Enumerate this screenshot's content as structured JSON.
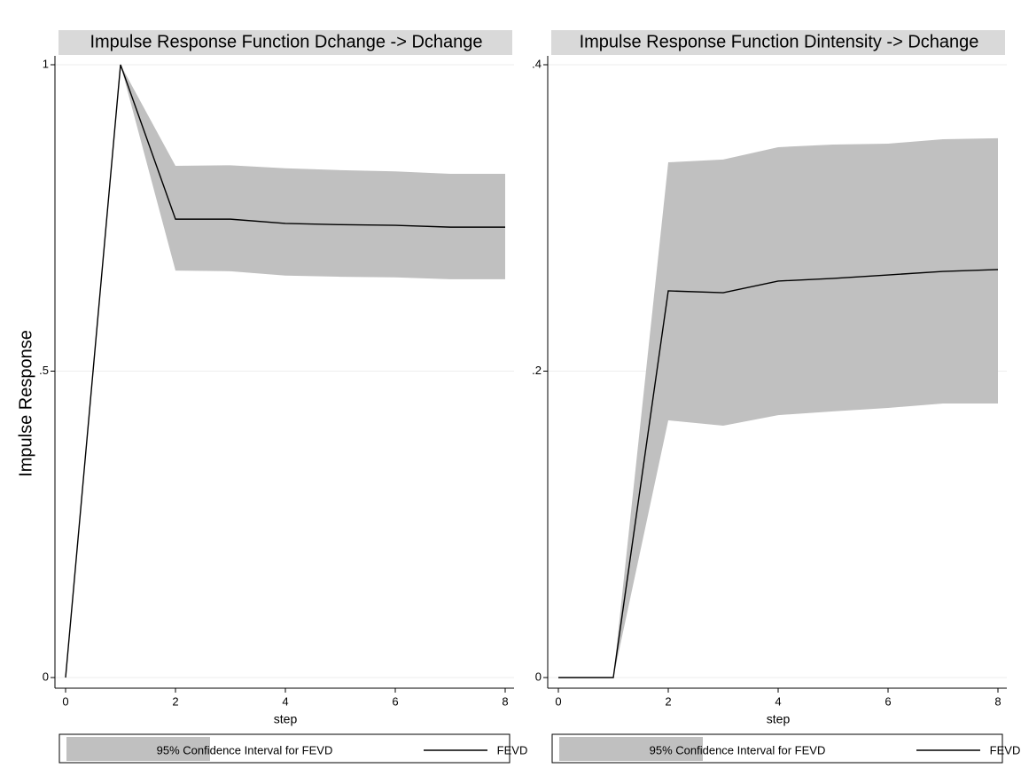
{
  "chart_data": [
    {
      "type": "line",
      "title": "Impulse Response Function  Dchange -> Dchange",
      "ylabel": "Impulse Response",
      "xlabel": "step",
      "x": [
        0,
        1,
        2,
        3,
        4,
        5,
        6,
        7,
        8
      ],
      "xlim": [
        0,
        8
      ],
      "xticks": [
        0,
        2,
        4,
        6,
        8
      ],
      "ylim": [
        0,
        1
      ],
      "yticks": [
        0,
        {
          "value": 0.5,
          "label": ".5"
        },
        1
      ],
      "grid": true,
      "band": {
        "name": "95% Confidence Interval for FEVD",
        "color": "#c0c0c0",
        "upper": [
          0,
          1,
          0.835,
          0.836,
          0.831,
          0.828,
          0.826,
          0.822,
          0.822
        ],
        "lower": [
          0,
          1,
          0.664,
          0.663,
          0.656,
          0.654,
          0.653,
          0.65,
          0.65
        ]
      },
      "series": [
        {
          "name": "FEVD",
          "color": "#000000",
          "values": [
            0,
            1,
            0.748,
            0.748,
            0.741,
            0.739,
            0.738,
            0.735,
            0.735
          ]
        }
      ]
    },
    {
      "type": "line",
      "title": "Impulse Response Function Dintensity -> Dchange",
      "xlabel": "step",
      "x": [
        0,
        1,
        2,
        3,
        4,
        5,
        6,
        7,
        8
      ],
      "xlim": [
        0,
        8
      ],
      "xticks": [
        0,
        2,
        4,
        6,
        8
      ],
      "ylim": [
        0,
        0.4
      ],
      "yticks": [
        0,
        {
          "value": 0.2,
          "label": ".2"
        },
        {
          "value": 0.4,
          "label": ".4"
        }
      ],
      "grid": true,
      "band": {
        "name": "95% Confidence Interval for FEVD",
        "color": "#c0c0c0",
        "upper": [
          0,
          0,
          0.3363,
          0.3381,
          0.3462,
          0.3479,
          0.3485,
          0.3514,
          0.352
        ],
        "lower": [
          0,
          0,
          0.1679,
          0.1644,
          0.1713,
          0.1737,
          0.176,
          0.1789,
          0.1789
        ]
      },
      "series": [
        {
          "name": "FEVD",
          "color": "#000000",
          "values": [
            0,
            0,
            0.2524,
            0.2512,
            0.2588,
            0.2605,
            0.2628,
            0.2651,
            0.2663
          ]
        }
      ]
    }
  ]
}
